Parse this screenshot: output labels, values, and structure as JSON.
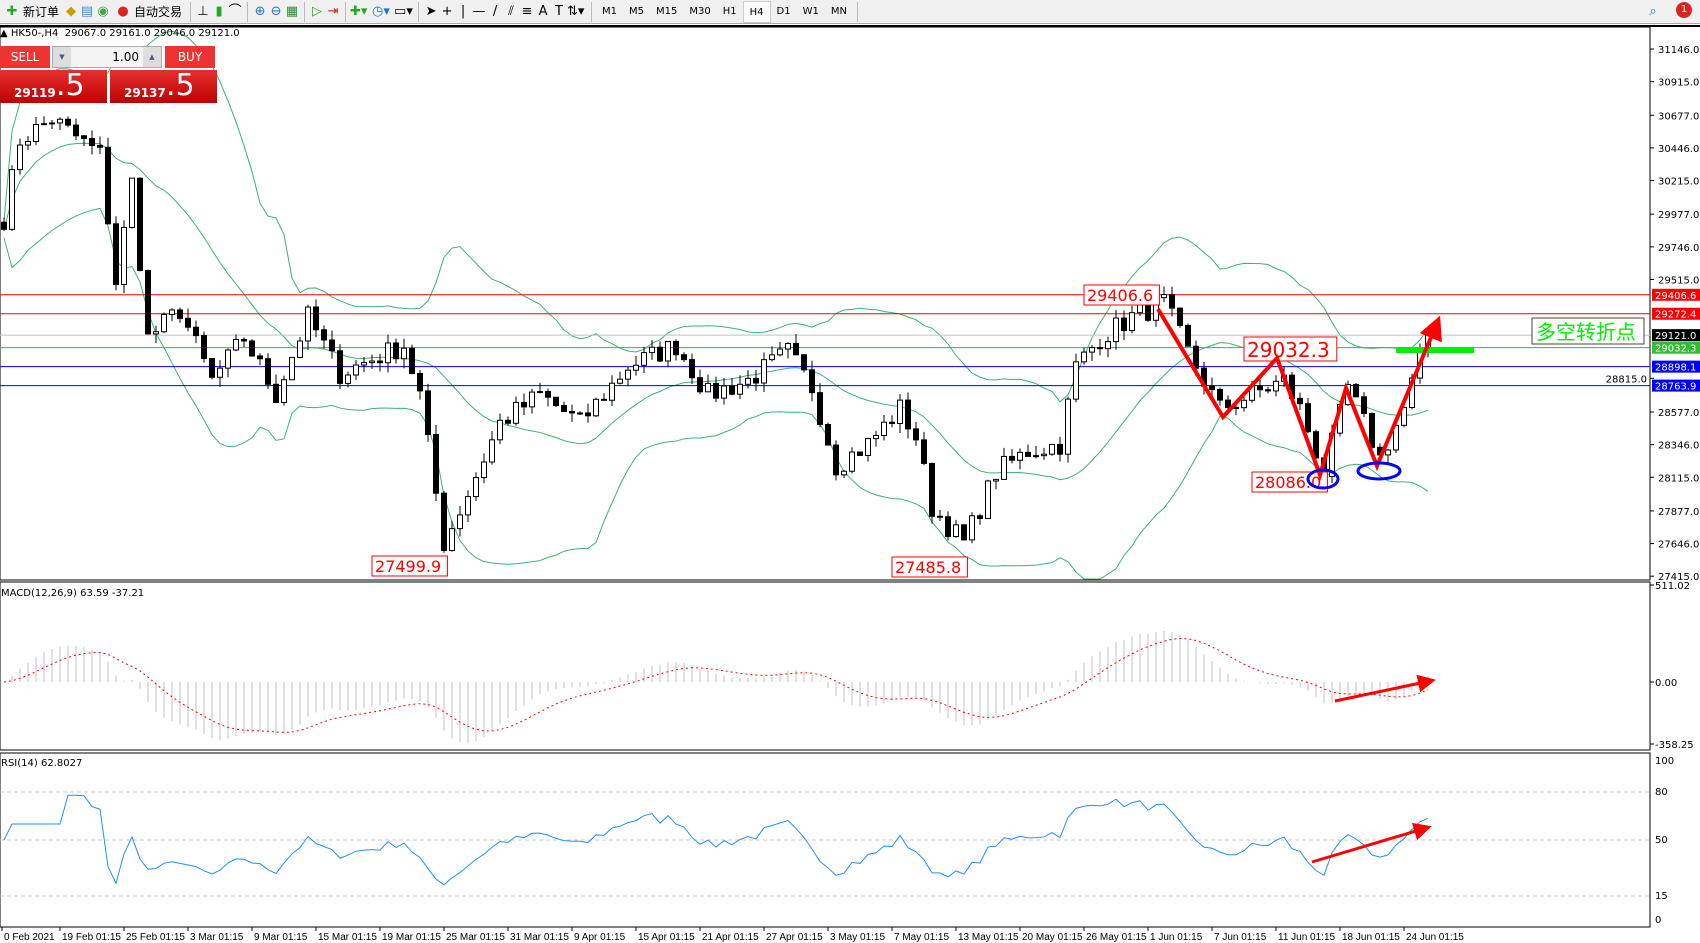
{
  "toolbar": {
    "new_order": "新订单",
    "auto_trade": "自动交易",
    "timeframes": [
      "M1",
      "M5",
      "M15",
      "M30",
      "H1",
      "H4",
      "D1",
      "W1",
      "MN"
    ],
    "active_timeframe": "H4",
    "notification_count": "1"
  },
  "header": {
    "symbol": "HK50-,H4",
    "ohlc": "29067.0 29161.0 29046.0 29121.0"
  },
  "trade_panel": {
    "sell_label": "SELL",
    "buy_label": "BUY",
    "lot": "1.00",
    "sell_main": "29119",
    "sell_frac": ".5",
    "buy_main": "29137",
    "buy_frac": ".5"
  },
  "price_axis": [
    "31146.0",
    "30915.0",
    "30677.0",
    "30446.0",
    "30215.0",
    "29977.0",
    "29746.0",
    "29515.0",
    "28815.0",
    "28577.0",
    "28346.0",
    "28115.0",
    "27877.0",
    "27646.0",
    "27415.0"
  ],
  "levels": [
    {
      "value": "29406.6",
      "color": "#ff0000"
    },
    {
      "value": "29272.4",
      "color": "#ff0000"
    },
    {
      "value": "29121.0",
      "color": "#000000",
      "line": "#c0c0c0"
    },
    {
      "value": "29032.3",
      "color": "#33bb33"
    },
    {
      "value": "28898.1",
      "color": "#0000ff"
    },
    {
      "value": "28763.9",
      "color": "#0000ff"
    }
  ],
  "annotations": {
    "high1": "29406.6",
    "low1": "27499.9",
    "low2": "27485.8",
    "mid": "29032.3",
    "low3": "28086.0",
    "pivot_text": "多空转折点"
  },
  "macd": {
    "title": "MACD(12,26,9) 63.59 -37.21",
    "axis": [
      "511.02",
      "0.00",
      "-358.25"
    ]
  },
  "rsi": {
    "title": "RSI(14) 62.8027",
    "axis": [
      "100",
      "80",
      "50",
      "15",
      "0"
    ]
  },
  "time_axis": [
    "0 Feb 2021",
    "19 Feb 01:15",
    "25 Feb 01:15",
    "3 Mar 01:15",
    "9 Mar 01:15",
    "15 Mar 01:15",
    "19 Mar 01:15",
    "25 Mar 01:15",
    "31 Mar 01:15",
    "9 Apr 01:15",
    "15 Apr 01:15",
    "21 Apr 01:15",
    "27 Apr 01:15",
    "3 May 01:15",
    "7 May 01:15",
    "13 May 01:15",
    "20 May 01:15",
    "26 May 01:15",
    "1 Jun 01:15",
    "7 Jun 01:15",
    "11 Jun 01:15",
    "18 Jun 01:15",
    "24 Jun 01:15"
  ],
  "chart_data": {
    "type": "candlestick",
    "symbol": "HK50-",
    "timeframe": "H4",
    "ylim": [
      27415,
      31146
    ],
    "indicators": [
      "Bollinger Bands",
      "MACD(12,26,9)",
      "RSI(14)"
    ],
    "close_path": [
      [
        0,
        29950
      ],
      [
        2,
        30500
      ],
      [
        6,
        30650
      ],
      [
        12,
        30400
      ],
      [
        14,
        29500
      ],
      [
        16,
        30200
      ],
      [
        18,
        29100
      ],
      [
        22,
        29300
      ],
      [
        26,
        28800
      ],
      [
        30,
        29100
      ],
      [
        34,
        28700
      ],
      [
        38,
        29250
      ],
      [
        42,
        28850
      ],
      [
        46,
        28950
      ],
      [
        50,
        29050
      ],
      [
        52,
        28700
      ],
      [
        55,
        27650
      ],
      [
        58,
        28000
      ],
      [
        62,
        28500
      ],
      [
        67,
        28700
      ],
      [
        72,
        28500
      ],
      [
        78,
        28900
      ],
      [
        84,
        29050
      ],
      [
        88,
        28700
      ],
      [
        93,
        28800
      ],
      [
        98,
        29000
      ],
      [
        101,
        28750
      ],
      [
        104,
        28200
      ],
      [
        108,
        28350
      ],
      [
        112,
        28600
      ],
      [
        114,
        28400
      ],
      [
        116,
        27900
      ],
      [
        120,
        27650
      ],
      [
        124,
        28150
      ],
      [
        128,
        28300
      ],
      [
        132,
        28350
      ],
      [
        134,
        28900
      ],
      [
        137,
        29100
      ],
      [
        141,
        29250
      ],
      [
        145,
        29350
      ],
      [
        148,
        29000
      ],
      [
        152,
        28600
      ],
      [
        156,
        28700
      ],
      [
        160,
        28800
      ],
      [
        162,
        28600
      ],
      [
        165,
        28150
      ],
      [
        168,
        28750
      ],
      [
        172,
        28250
      ],
      [
        175,
        28600
      ],
      [
        178,
        29121
      ]
    ],
    "colors": {
      "bands": "#3cb371",
      "macd_hist": "#c0c0c0",
      "macd_signal": "#ff0000",
      "rsi": "#1e90ff",
      "arrows": "#ff0000",
      "ellipses": "#0000ff",
      "pivot_bar": "#00ee00"
    }
  }
}
